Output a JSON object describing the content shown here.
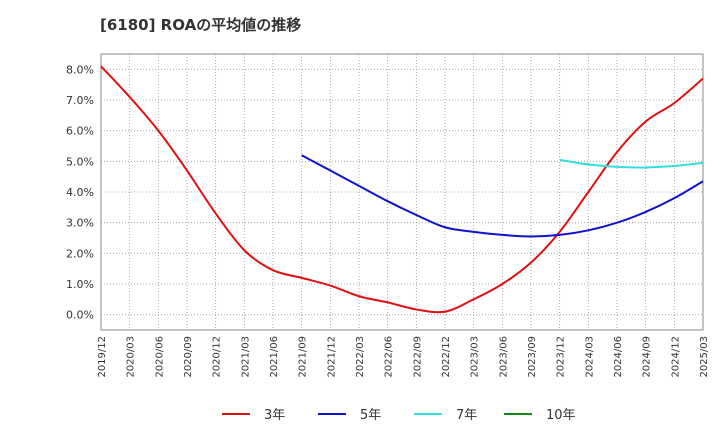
{
  "title": "[6180]  ROAの平均値の推移",
  "chart_data": {
    "type": "line",
    "title": "[6180]  ROAの平均値の推移",
    "xlabel": "",
    "ylabel": "",
    "ylim": [
      -0.5,
      8.5
    ],
    "grid": true,
    "legend_position": "bottom",
    "y_ticks": [
      "0.0%",
      "1.0%",
      "2.0%",
      "3.0%",
      "4.0%",
      "5.0%",
      "6.0%",
      "7.0%",
      "8.0%"
    ],
    "x_ticks": [
      "2019/12",
      "2020/03",
      "2020/06",
      "2020/09",
      "2020/12",
      "2021/03",
      "2021/06",
      "2021/09",
      "2021/12",
      "2022/03",
      "2022/06",
      "2022/09",
      "2022/12",
      "2023/03",
      "2023/06",
      "2023/09",
      "2023/12",
      "2024/03",
      "2024/06",
      "2024/09",
      "2024/12",
      "2025/03"
    ],
    "series": [
      {
        "name": "3年",
        "color": "#dd1111",
        "points": [
          [
            "2019/12",
            8.1
          ],
          [
            "2020/03",
            7.1
          ],
          [
            "2020/06",
            6.0
          ],
          [
            "2020/09",
            4.7
          ],
          [
            "2020/12",
            3.3
          ],
          [
            "2021/03",
            2.1
          ],
          [
            "2021/06",
            1.45
          ],
          [
            "2021/09",
            1.2
          ],
          [
            "2021/12",
            0.95
          ],
          [
            "2022/03",
            0.6
          ],
          [
            "2022/06",
            0.4
          ],
          [
            "2022/09",
            0.17
          ],
          [
            "2022/12",
            0.1
          ],
          [
            "2023/03",
            0.5
          ],
          [
            "2023/06",
            1.0
          ],
          [
            "2023/09",
            1.7
          ],
          [
            "2023/12",
            2.7
          ],
          [
            "2024/03",
            4.0
          ],
          [
            "2024/06",
            5.3
          ],
          [
            "2024/09",
            6.3
          ],
          [
            "2024/12",
            6.9
          ],
          [
            "2025/03",
            7.7
          ]
        ]
      },
      {
        "name": "5年",
        "color": "#1111cc",
        "points": [
          [
            "2021/09",
            5.2
          ],
          [
            "2021/12",
            4.7
          ],
          [
            "2022/03",
            4.2
          ],
          [
            "2022/06",
            3.7
          ],
          [
            "2022/09",
            3.25
          ],
          [
            "2022/12",
            2.85
          ],
          [
            "2023/03",
            2.7
          ],
          [
            "2023/06",
            2.6
          ],
          [
            "2023/09",
            2.55
          ],
          [
            "2023/12",
            2.6
          ],
          [
            "2024/03",
            2.75
          ],
          [
            "2024/06",
            3.0
          ],
          [
            "2024/09",
            3.35
          ],
          [
            "2024/12",
            3.8
          ],
          [
            "2025/03",
            4.35
          ]
        ]
      },
      {
        "name": "7年",
        "color": "#33dddd",
        "points": [
          [
            "2023/12",
            5.05
          ],
          [
            "2024/03",
            4.9
          ],
          [
            "2024/06",
            4.82
          ],
          [
            "2024/09",
            4.8
          ],
          [
            "2024/12",
            4.85
          ],
          [
            "2025/03",
            4.95
          ]
        ]
      },
      {
        "name": "10年",
        "color": "#118811",
        "points": []
      }
    ]
  }
}
